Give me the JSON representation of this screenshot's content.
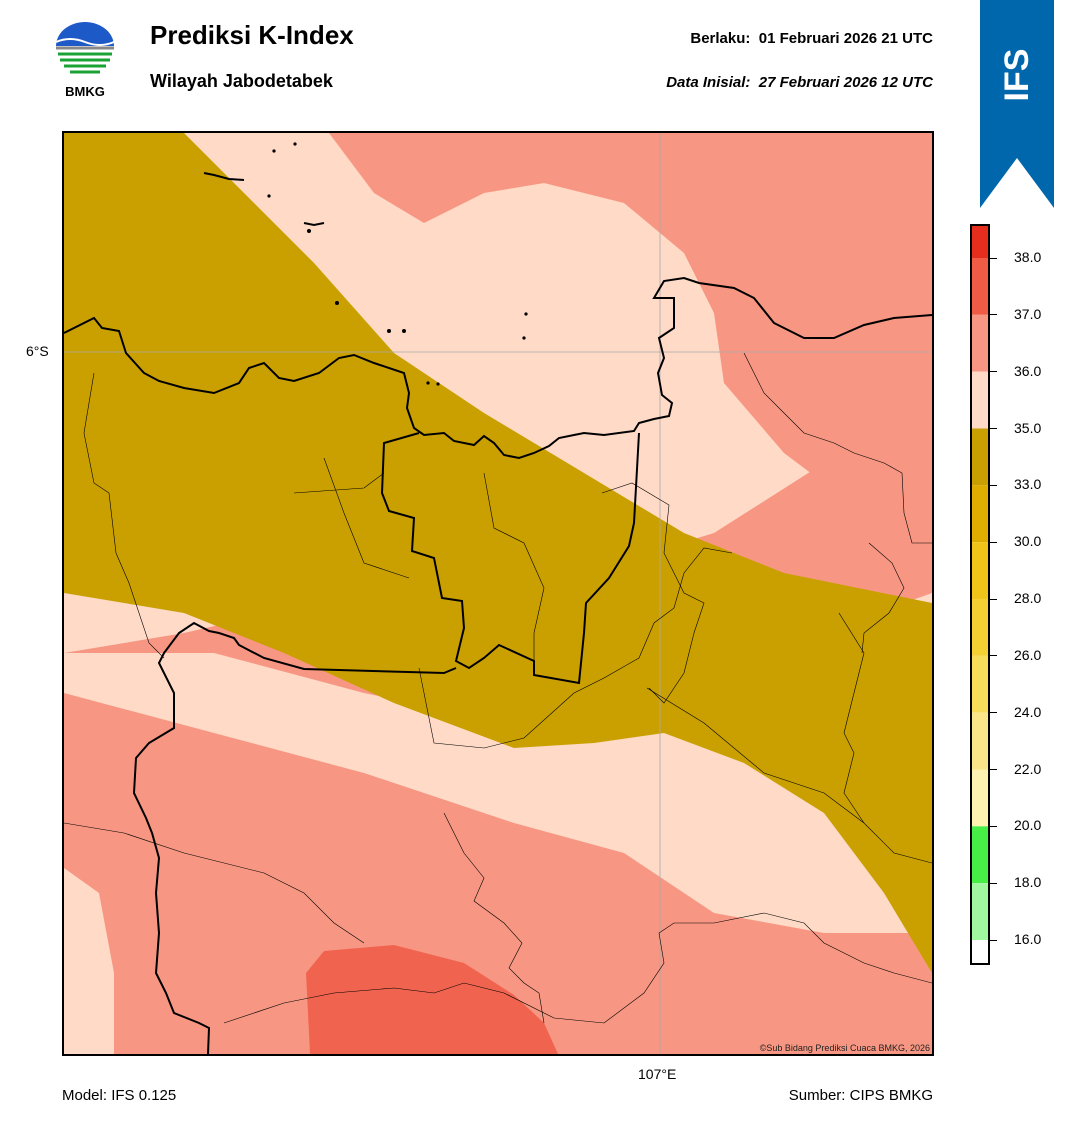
{
  "header": {
    "title": "Prediksi K-Index",
    "subtitle": "Wilayah Jabodetabek",
    "valid_label": "Berlaku:",
    "valid_value": "01 Februari 2026 21 UTC",
    "init_label": "Data Inisial:",
    "init_value": "27 Februari 2026 12 UTC"
  },
  "logo": {
    "text": "BMKG",
    "icon": "bmkg-logo"
  },
  "badge": {
    "text": "IFS",
    "color": "#0067ac"
  },
  "map": {
    "lat_label": "6°S",
    "lon_label": "107°E",
    "credit": "©Sub Bidang Prediksi Cuaca BMKG, 2026",
    "colors": {
      "band_33_35": "#c9a000",
      "band_35_36": "#fedac7",
      "band_36_37": "#f79783",
      "band_37_38": "#f0644f",
      "coast": "#000000"
    }
  },
  "footer": {
    "model": "Model: IFS 0.125",
    "source": "Sumber: CIPS BMKG"
  },
  "colorbar": {
    "ticks": [
      "38.0",
      "37.0",
      "36.0",
      "35.0",
      "33.0",
      "30.0",
      "28.0",
      "26.0",
      "24.0",
      "22.0",
      "20.0",
      "18.0",
      "16.0"
    ],
    "colors": [
      "#e62e1e",
      "#ef5b45",
      "#f79783",
      "#fedac7",
      "#c9a000",
      "#dfad00",
      "#f0c419",
      "#f4d032",
      "#f7dc5a",
      "#fae688",
      "#fdf2b0",
      "#46ee46",
      "#a0f7a0",
      "#ffffff"
    ]
  }
}
